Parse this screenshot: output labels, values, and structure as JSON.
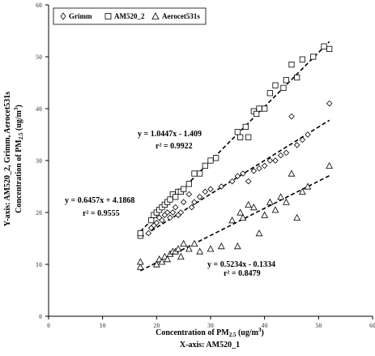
{
  "chart_data": {
    "type": "scatter",
    "xlabel_line1_main": "Concentration of PM",
    "xlabel_line1_sub": "2.5",
    "xlabel_line1_unit": " (ug/m",
    "xlabel_line1_sup": "3",
    "xlabel_line1_close": ")",
    "xlabel_line2": "X-axis: AM520_1",
    "ylabel_line1": "Y-axis: AM520_2, Grimm, Aerocet531s",
    "ylabel_line2_main": "Concentration of PM",
    "ylabel_line2_sub": "2.5",
    "ylabel_line2_unit": " (ug/m",
    "ylabel_line2_sup": "3",
    "ylabel_line2_close": ")",
    "xlim": [
      0,
      60
    ],
    "ylim": [
      0,
      60
    ],
    "xticks": [
      0,
      10,
      20,
      30,
      40,
      50,
      60
    ],
    "yticks": [
      0,
      10,
      20,
      30,
      40,
      50,
      60
    ],
    "grid": false,
    "legend_position": "top-left",
    "series": [
      {
        "name": "Grimm",
        "marker": "diamond",
        "fit": {
          "slope": 0.6457,
          "intercept": 4.1868,
          "x_range": [
            17,
            52
          ]
        },
        "equation": "y = 0.6457x + 4.1868",
        "r2_label": "r² = 0.9555",
        "points": [
          [
            17,
            15.5
          ],
          [
            18.5,
            16
          ],
          [
            19,
            17
          ],
          [
            19.5,
            17.5
          ],
          [
            20,
            18
          ],
          [
            20.5,
            19
          ],
          [
            21,
            18.5
          ],
          [
            21.5,
            19.5
          ],
          [
            22,
            20
          ],
          [
            22.5,
            19
          ],
          [
            23,
            20
          ],
          [
            23.5,
            21
          ],
          [
            24,
            19.5
          ],
          [
            24.5,
            20
          ],
          [
            25,
            22
          ],
          [
            26,
            23.5
          ],
          [
            26.5,
            21
          ],
          [
            27,
            22
          ],
          [
            28,
            23
          ],
          [
            29,
            24
          ],
          [
            30,
            24.5
          ],
          [
            32,
            25
          ],
          [
            34,
            26
          ],
          [
            35,
            27
          ],
          [
            36,
            27.5
          ],
          [
            37,
            26
          ],
          [
            38,
            28
          ],
          [
            39,
            28.5
          ],
          [
            40,
            29
          ],
          [
            41,
            30
          ],
          [
            42,
            30
          ],
          [
            43,
            31
          ],
          [
            44,
            31.5
          ],
          [
            45,
            38.5
          ],
          [
            46,
            33
          ],
          [
            47,
            34
          ],
          [
            48,
            35
          ],
          [
            52,
            41
          ]
        ]
      },
      {
        "name": "AM520_2",
        "marker": "square",
        "fit": {
          "slope": 1.0447,
          "intercept": -1.409,
          "x_range": [
            17,
            52
          ]
        },
        "equation": "y = 1.0447x - 1.409",
        "r2_label": "r² = 0.9922",
        "points": [
          [
            17,
            15.5
          ],
          [
            17,
            16
          ],
          [
            19,
            18.5
          ],
          [
            19.5,
            19.5
          ],
          [
            20,
            20
          ],
          [
            20.5,
            20.5
          ],
          [
            21,
            21
          ],
          [
            21.5,
            21.5
          ],
          [
            22,
            22
          ],
          [
            22.5,
            22.5
          ],
          [
            23,
            23.5
          ],
          [
            23.5,
            23
          ],
          [
            24,
            24
          ],
          [
            24.5,
            24
          ],
          [
            25,
            24.5
          ],
          [
            26,
            25.5
          ],
          [
            27,
            27.5
          ],
          [
            28,
            27.5
          ],
          [
            29,
            29
          ],
          [
            30,
            30
          ],
          [
            31,
            30.5
          ],
          [
            35,
            35.5
          ],
          [
            35.5,
            34.5
          ],
          [
            36.5,
            36.5
          ],
          [
            37,
            34.5
          ],
          [
            38,
            39.5
          ],
          [
            38.5,
            39
          ],
          [
            39,
            40
          ],
          [
            40,
            40
          ],
          [
            41,
            43
          ],
          [
            42,
            44.5
          ],
          [
            43.5,
            44
          ],
          [
            44,
            45.5
          ],
          [
            45,
            48.5
          ],
          [
            46,
            46
          ],
          [
            47,
            49.5
          ],
          [
            49,
            50
          ],
          [
            51,
            52
          ],
          [
            52,
            51.5
          ]
        ]
      },
      {
        "name": "Aerocet531s",
        "marker": "triangle",
        "fit": {
          "slope": 0.5234,
          "intercept": -0.1334,
          "x_range": [
            17,
            52
          ]
        },
        "equation": "y = 0.5234x - 0.1334",
        "r2_label": "r² = 0.8479",
        "points": [
          [
            17,
            9.5
          ],
          [
            17,
            10.5
          ],
          [
            20,
            10
          ],
          [
            20.5,
            11
          ],
          [
            21,
            10.5
          ],
          [
            21.5,
            11.5
          ],
          [
            22,
            11
          ],
          [
            22.5,
            12
          ],
          [
            23,
            12.5
          ],
          [
            23.5,
            12.5
          ],
          [
            24,
            13
          ],
          [
            24.5,
            11.5
          ],
          [
            25,
            14
          ],
          [
            26,
            13
          ],
          [
            27,
            14
          ],
          [
            28,
            12.5
          ],
          [
            30,
            13
          ],
          [
            32,
            13.5
          ],
          [
            34,
            18.5
          ],
          [
            35,
            13.5
          ],
          [
            35.5,
            20
          ],
          [
            36,
            19
          ],
          [
            37,
            21.5
          ],
          [
            38,
            21
          ],
          [
            39,
            16
          ],
          [
            40,
            19.5
          ],
          [
            41,
            22
          ],
          [
            42,
            20.5
          ],
          [
            43,
            23
          ],
          [
            44,
            22
          ],
          [
            45,
            27.5
          ],
          [
            46,
            19
          ],
          [
            47,
            24
          ],
          [
            48,
            25
          ],
          [
            52,
            29
          ]
        ]
      }
    ]
  }
}
